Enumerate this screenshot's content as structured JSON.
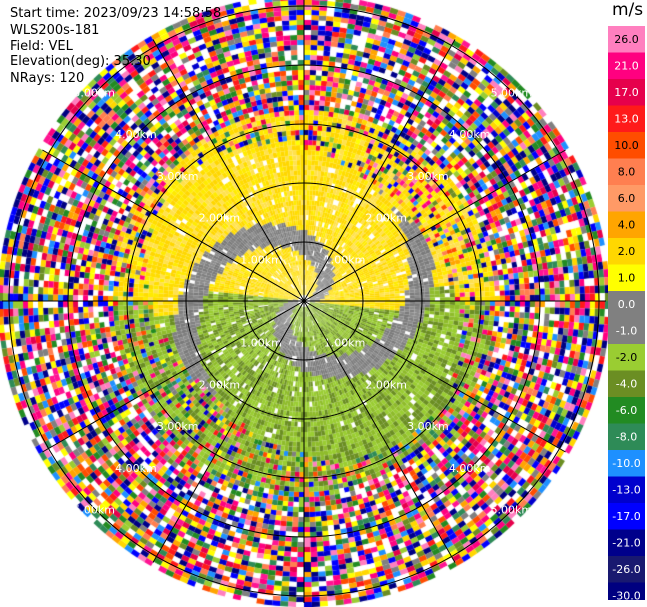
{
  "header": {
    "start_time": "Start time: 2023/09/23 14:58:58",
    "instrument": "WLS200s-181",
    "field": "Field: VEL",
    "elevation": "Elevation(deg): 35.30",
    "nrays": "NRays: 120"
  },
  "colorbar": {
    "unit": "m/s",
    "ticks": [
      "26.0",
      "21.0",
      "17.0",
      "13.0",
      "10.0",
      "8.0",
      "6.0",
      "4.0",
      "2.0",
      "1.0",
      "0.0",
      "-1.0",
      "-2.0",
      "-4.0",
      "-6.0",
      "-8.0",
      "-10.0",
      "-13.0",
      "-17.0",
      "-21.0",
      "-26.0",
      "-30.0"
    ],
    "colors": [
      "#ff7fbf",
      "#ff0080",
      "#e6004c",
      "#ff1a1a",
      "#ff4d00",
      "#ff7f50",
      "#ff9a66",
      "#ffa500",
      "#ffd700",
      "#ffff00",
      "#808080",
      "#808080",
      "#9acd32",
      "#6b8e23",
      "#228b22",
      "#2e8b57",
      "#1e90ff",
      "#0000cd",
      "#0000ff",
      "#00008b",
      "#191970",
      "#000080"
    ]
  },
  "chart_data": {
    "type": "heatmap",
    "title": "",
    "rings": [
      "1.00km",
      "2.00km",
      "3.00km",
      "4.00km",
      "5.00km"
    ],
    "spoke_angles_deg": [
      0,
      30,
      60,
      90,
      120,
      150,
      180,
      210,
      240,
      270,
      300,
      330
    ],
    "range_max_km": 5.7
  }
}
